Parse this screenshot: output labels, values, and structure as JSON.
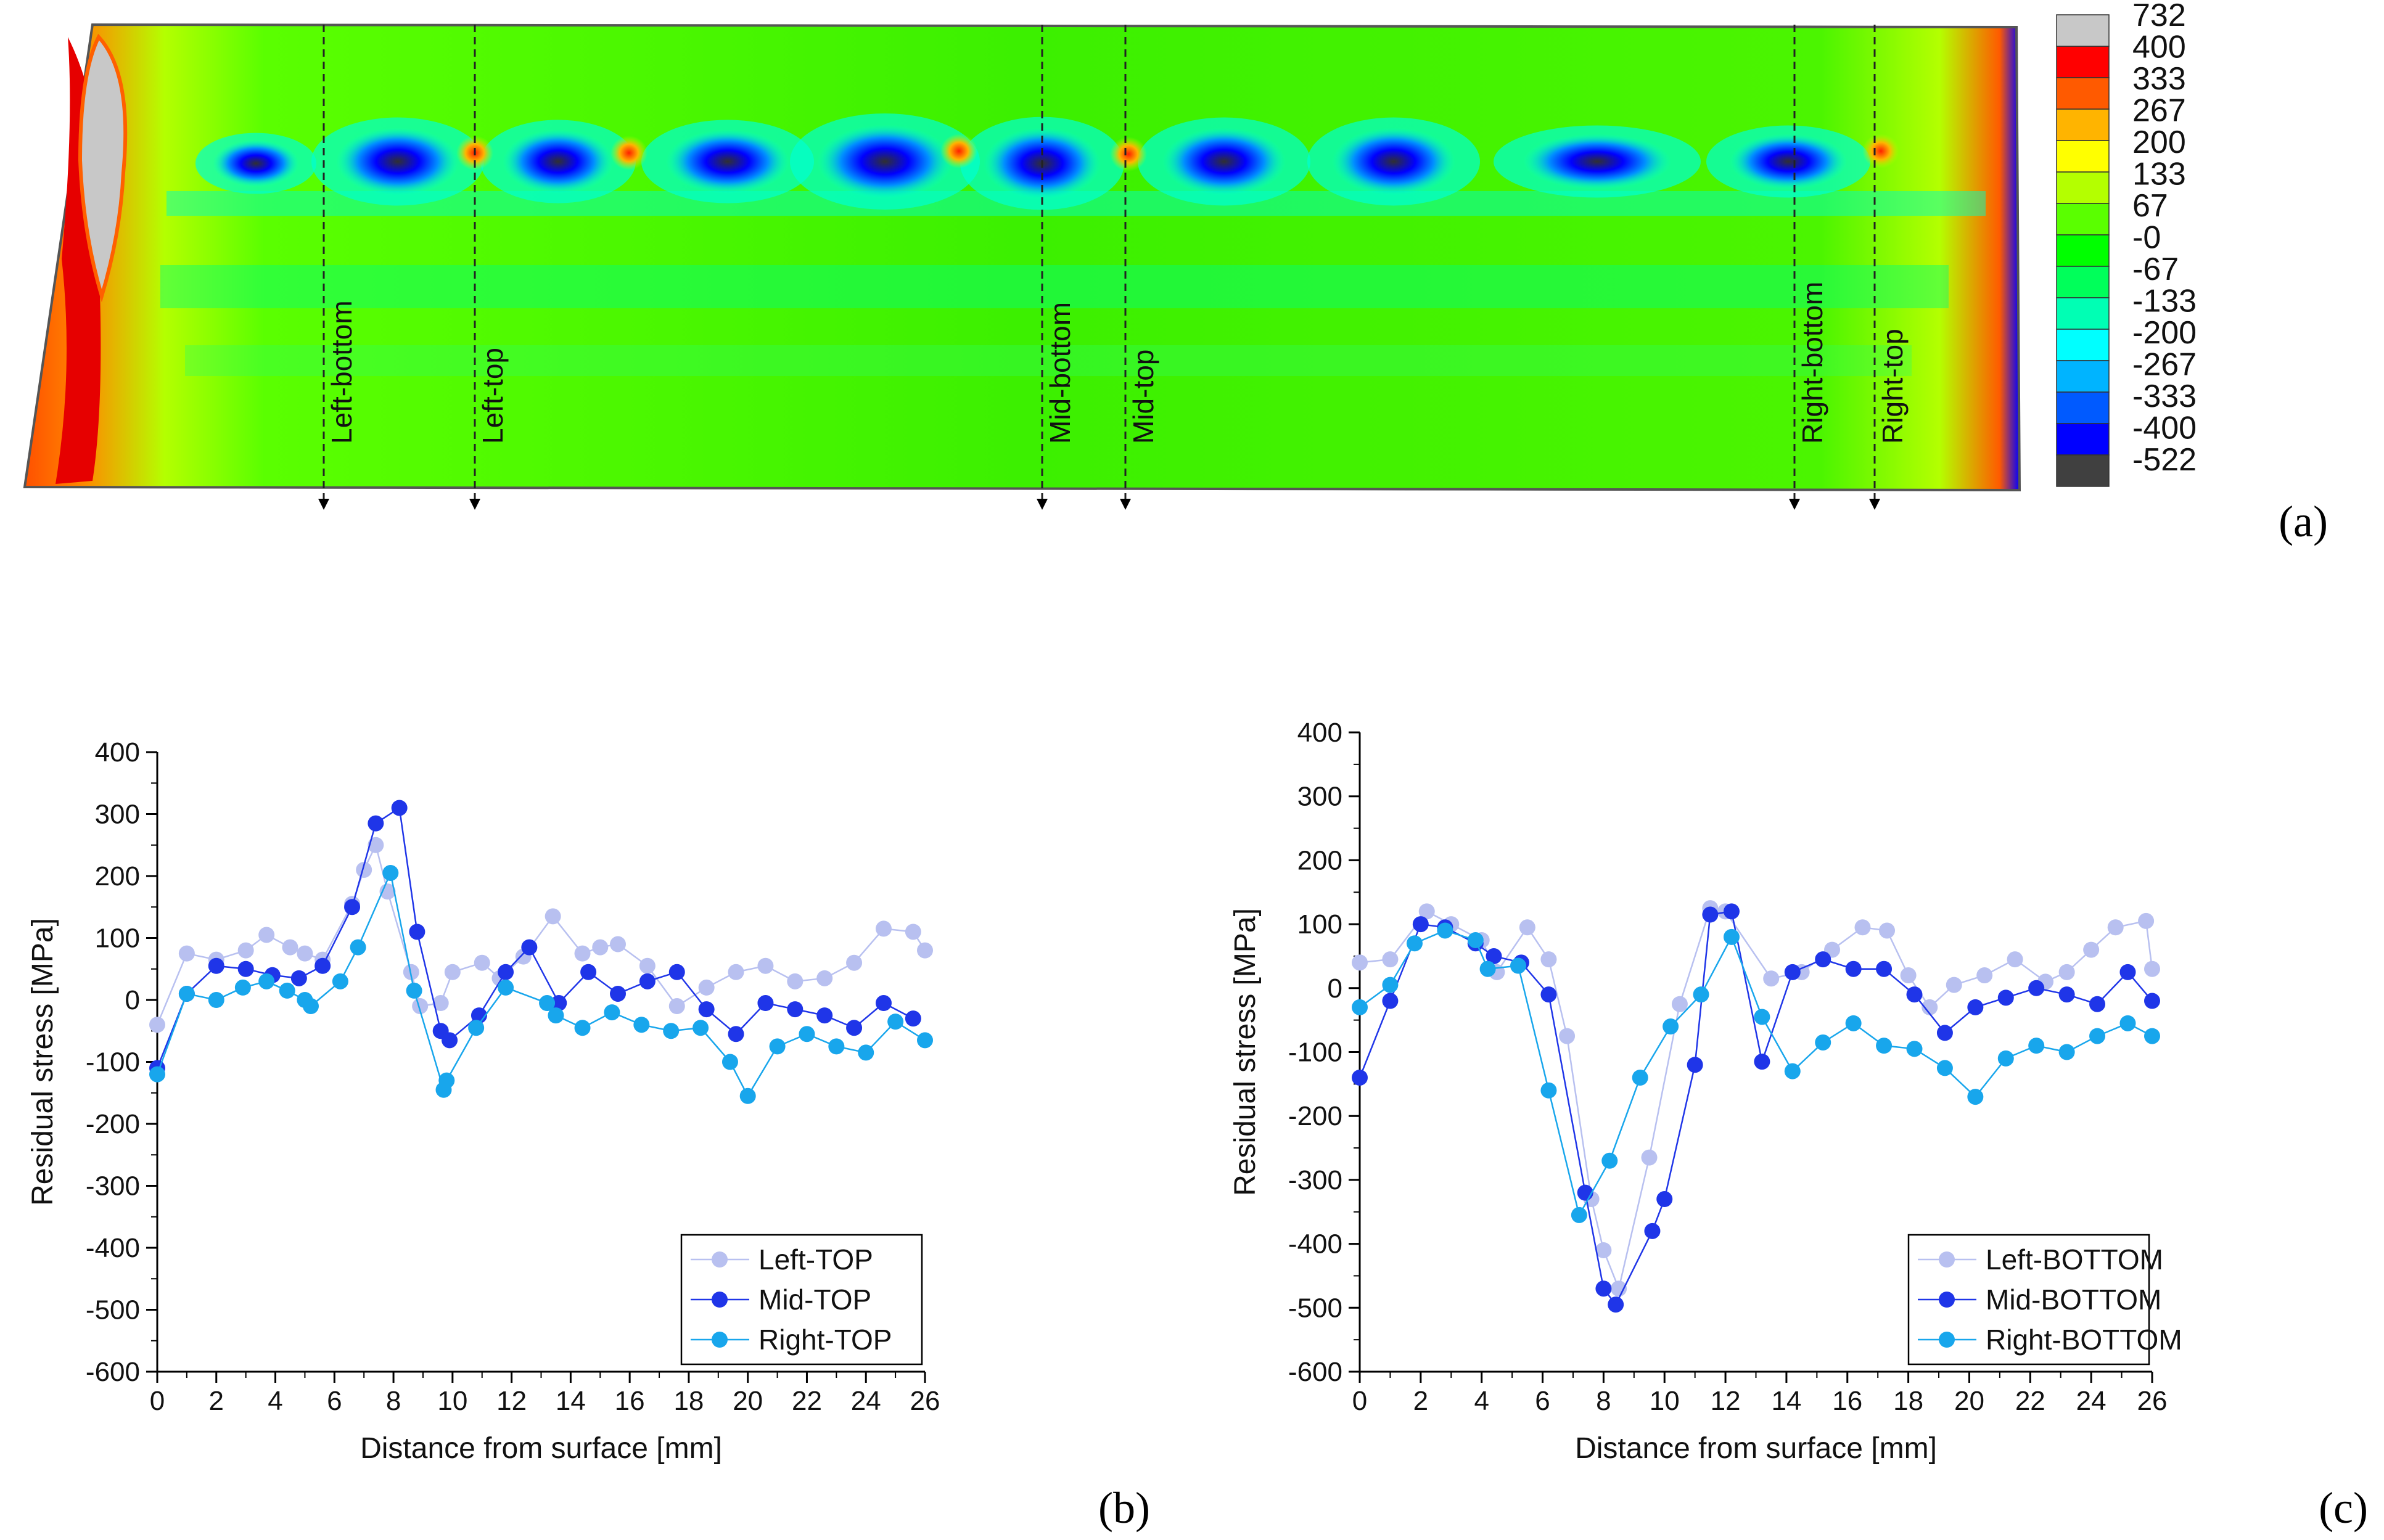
{
  "panel_labels": {
    "a": "(a)",
    "b": "(b)",
    "c": "(c)"
  },
  "contour": {
    "legend_values": [
      "732",
      "400",
      "333",
      "267",
      "200",
      "133",
      "67",
      "-0",
      "-67",
      "-133",
      "-200",
      "-267",
      "-333",
      "-400",
      "-522"
    ],
    "legend_colors": [
      "#c8c8c8",
      "#ff0000",
      "#ff5a00",
      "#ffb400",
      "#ffff00",
      "#b4ff00",
      "#5aff00",
      "#00ff00",
      "#00ff5a",
      "#00ffb4",
      "#00ffff",
      "#00b4ff",
      "#005aff",
      "#0000ff",
      "#404040"
    ],
    "section_labels": [
      "Left-bottom",
      "Left-top",
      "Mid-bottom",
      "Mid-top",
      "Right-bottom",
      "Right-top"
    ]
  },
  "chart_data": [
    {
      "type": "line",
      "panel": "b",
      "xlabel": "Distance from surface [mm]",
      "ylabel": "Residual stress [MPa]",
      "xlim": [
        0,
        26
      ],
      "ylim": [
        -600,
        400
      ],
      "xticks": [
        0,
        2,
        4,
        6,
        8,
        10,
        12,
        14,
        16,
        18,
        20,
        22,
        24,
        26
      ],
      "yticks": [
        400,
        300,
        200,
        100,
        0,
        -100,
        -200,
        -300,
        -400,
        -500,
        -600
      ],
      "legend_position": "bottom-right",
      "series": [
        {
          "name": "Left-TOP",
          "color": "#b8c0f0",
          "x": [
            0,
            1,
            2,
            3,
            3.7,
            4.5,
            5,
            5.6,
            6.6,
            7,
            7.4,
            7.8,
            8.6,
            8.9,
            9.6,
            10,
            11,
            11.6,
            12.4,
            13.4,
            14.4,
            15,
            15.6,
            16.6,
            17.6,
            18.6,
            19.6,
            20.6,
            21.6,
            22.6,
            23.6,
            24.6,
            25.6,
            26
          ],
          "y": [
            -40,
            75,
            65,
            80,
            105,
            85,
            75,
            65,
            155,
            210,
            250,
            175,
            45,
            -10,
            -5,
            45,
            60,
            35,
            70,
            135,
            75,
            85,
            90,
            55,
            -10,
            20,
            45,
            55,
            30,
            35,
            60,
            115,
            110,
            80
          ]
        },
        {
          "name": "Mid-TOP",
          "color": "#1f35e8",
          "x": [
            0,
            1,
            2,
            3,
            3.9,
            4.8,
            5.6,
            6.6,
            7.4,
            8.2,
            8.8,
            9.6,
            9.9,
            10.9,
            11.8,
            12.6,
            13.6,
            14.6,
            15.6,
            16.6,
            17.6,
            18.6,
            19.6,
            20.6,
            21.6,
            22.6,
            23.6,
            24.6,
            25.6
          ],
          "y": [
            -110,
            10,
            55,
            50,
            40,
            35,
            55,
            150,
            285,
            310,
            110,
            -50,
            -65,
            -25,
            45,
            85,
            -5,
            45,
            10,
            30,
            45,
            -15,
            -55,
            -5,
            -15,
            -25,
            -45,
            -5,
            -30
          ]
        },
        {
          "name": "Right-TOP",
          "color": "#18a6ec",
          "x": [
            0,
            1,
            2,
            2.9,
            3.7,
            4.4,
            5,
            5.2,
            6.2,
            6.8,
            7.9,
            8.7,
            9.7,
            9.8,
            10.8,
            11.8,
            13.2,
            13.5,
            14.4,
            15.4,
            16.4,
            17.4,
            18.4,
            19.4,
            20,
            21,
            22,
            23,
            24,
            25,
            26
          ],
          "y": [
            -120,
            10,
            0,
            20,
            30,
            15,
            0,
            -10,
            30,
            85,
            205,
            15,
            -145,
            -130,
            -45,
            20,
            -5,
            -25,
            -45,
            -20,
            -40,
            -50,
            -45,
            -100,
            -155,
            -75,
            -55,
            -75,
            -85,
            -35,
            -65
          ]
        }
      ]
    },
    {
      "type": "line",
      "panel": "c",
      "xlabel": "Distance from surface [mm]",
      "ylabel": "Residual stress [MPa]",
      "xlim": [
        0,
        26
      ],
      "ylim": [
        -600,
        400
      ],
      "xticks": [
        0,
        2,
        4,
        6,
        8,
        10,
        12,
        14,
        16,
        18,
        20,
        22,
        24,
        26
      ],
      "yticks": [
        400,
        300,
        200,
        100,
        0,
        -100,
        -200,
        -300,
        -400,
        -500,
        -600
      ],
      "legend_position": "bottom-right",
      "series": [
        {
          "name": "Left-BOTTOM",
          "color": "#b8c0f0",
          "x": [
            0,
            1,
            2.2,
            3,
            4,
            4.5,
            5.5,
            6.2,
            6.8,
            7.6,
            8,
            8.5,
            9.5,
            10.5,
            11.5,
            12,
            13.5,
            14.5,
            15.5,
            16.5,
            17.3,
            18,
            18.7,
            19.5,
            20.5,
            21.5,
            22.5,
            23.2,
            24,
            24.8,
            25.8,
            26
          ],
          "y": [
            40,
            45,
            120,
            100,
            75,
            25,
            95,
            45,
            -75,
            -330,
            -410,
            -470,
            -265,
            -25,
            125,
            120,
            15,
            25,
            60,
            95,
            90,
            20,
            -30,
            5,
            20,
            45,
            10,
            25,
            60,
            95,
            105,
            30
          ]
        },
        {
          "name": "Mid-BOTTOM",
          "color": "#1f35e8",
          "x": [
            0,
            1,
            2,
            2.8,
            3.8,
            4.4,
            5.3,
            6.2,
            7.4,
            8,
            8.4,
            9.6,
            10,
            11,
            11.5,
            12.2,
            13.2,
            14.2,
            15.2,
            16.2,
            17.2,
            18.2,
            19.2,
            20.2,
            21.2,
            22.2,
            23.2,
            24.2,
            25.2,
            26
          ],
          "y": [
            -140,
            -20,
            100,
            95,
            70,
            50,
            40,
            -10,
            -320,
            -470,
            -495,
            -380,
            -330,
            -120,
            115,
            120,
            -115,
            25,
            45,
            30,
            30,
            -10,
            -70,
            -30,
            -15,
            0,
            -10,
            -25,
            25,
            -20
          ]
        },
        {
          "name": "Right-BOTTOM",
          "color": "#18a6ec",
          "x": [
            0,
            1,
            1.8,
            2.8,
            3.8,
            4.2,
            5.2,
            6.2,
            7.2,
            8.2,
            9.2,
            10.2,
            11.2,
            12.2,
            13.2,
            14.2,
            15.2,
            16.2,
            17.2,
            18.2,
            19.2,
            20.2,
            21.2,
            22.2,
            23.2,
            24.2,
            25.2,
            26
          ],
          "y": [
            -30,
            5,
            70,
            90,
            75,
            30,
            35,
            -160,
            -355,
            -270,
            -140,
            -60,
            -10,
            80,
            -45,
            -130,
            -85,
            -55,
            -90,
            -95,
            -125,
            -170,
            -110,
            -90,
            -100,
            -75,
            -55,
            -75
          ]
        }
      ]
    }
  ]
}
